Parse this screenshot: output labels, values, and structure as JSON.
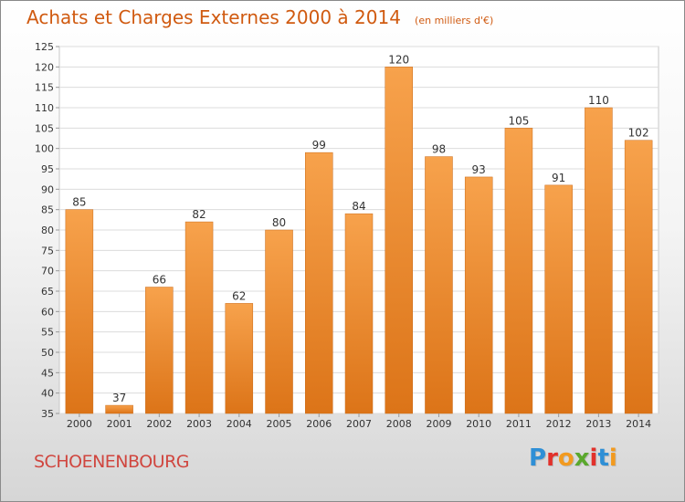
{
  "header": {
    "title": "Achats et Charges Externes 2000 à 2014",
    "unit": "(en milliers d'€)"
  },
  "footer": {
    "town": "SCHOENENBOURG",
    "logo_letters": [
      "P",
      "r",
      "o",
      "x",
      "i",
      "t",
      "i"
    ],
    "logo_colors": [
      "#2e8fd6",
      "#e2312b",
      "#f29a1f",
      "#5aa82d",
      "#e2312b",
      "#2e8fd6",
      "#f29a1f"
    ]
  },
  "chart_data": {
    "type": "bar",
    "categories": [
      "2000",
      "2001",
      "2002",
      "2003",
      "2004",
      "2005",
      "2006",
      "2007",
      "2008",
      "2009",
      "2010",
      "2011",
      "2012",
      "2013",
      "2014"
    ],
    "values": [
      85,
      37,
      66,
      82,
      62,
      80,
      99,
      84,
      120,
      98,
      93,
      105,
      91,
      110,
      102
    ],
    "title": "Achats et Charges Externes 2000 à 2014",
    "ylim": [
      35,
      125
    ],
    "yticks": [
      35,
      40,
      45,
      50,
      55,
      60,
      65,
      70,
      75,
      80,
      85,
      90,
      95,
      100,
      105,
      110,
      115,
      120,
      125
    ],
    "grid": true,
    "bar_color_top": "#f7a24c",
    "bar_color_bottom": "#dc7418"
  }
}
